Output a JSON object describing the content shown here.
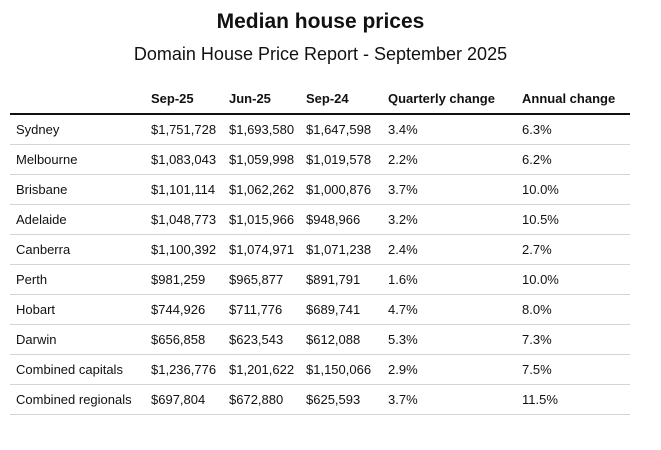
{
  "header": {
    "title": "Median house prices",
    "subtitle": "Domain House Price Report - September 2025"
  },
  "table": {
    "columns": [
      "Sep-25",
      "Jun-25",
      "Sep-24",
      "Quarterly change",
      "Annual change"
    ],
    "rows": [
      [
        "Sydney",
        "$1,751,728",
        "$1,693,580",
        "$1,647,598",
        "3.4%",
        "6.3%"
      ],
      [
        "Melbourne",
        "$1,083,043",
        "$1,059,998",
        "$1,019,578",
        "2.2%",
        "6.2%"
      ],
      [
        "Brisbane",
        "$1,101,114",
        "$1,062,262",
        "$1,000,876",
        "3.7%",
        "10.0%"
      ],
      [
        "Adelaide",
        "$1,048,773",
        "$1,015,966",
        "$948,966",
        "3.2%",
        "10.5%"
      ],
      [
        "Canberra",
        "$1,100,392",
        "$1,074,971",
        "$1,071,238",
        "2.4%",
        "2.7%"
      ],
      [
        "Perth",
        "$981,259",
        "$965,877",
        "$891,791",
        "1.6%",
        "10.0%"
      ],
      [
        "Hobart",
        "$744,926",
        "$711,776",
        "$689,741",
        "4.7%",
        "8.0%"
      ],
      [
        "Darwin",
        "$656,858",
        "$623,543",
        "$612,088",
        "5.3%",
        "7.3%"
      ],
      [
        "Combined capitals",
        "$1,236,776",
        "$1,201,622",
        "$1,150,066",
        "2.9%",
        "7.5%"
      ],
      [
        "Combined regionals",
        "$697,804",
        "$672,880",
        "$625,593",
        "3.7%",
        "11.5%"
      ]
    ]
  }
}
